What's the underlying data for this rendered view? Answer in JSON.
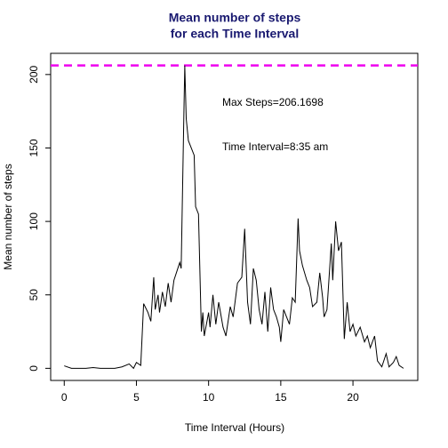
{
  "chart_data": {
    "type": "line",
    "title": [
      "Mean number of steps",
      "for each Time Interval"
    ],
    "xlabel": "Time Interval (Hours)",
    "ylabel": "Mean number of steps",
    "annotations": [
      {
        "text": "Max Steps=206.1698",
        "color": "#ee00ee"
      },
      {
        "text": "Time Interval=8:35 am",
        "color": "#0000ff"
      }
    ],
    "hline": {
      "value": 206.1698,
      "color": "#ee00ee"
    },
    "x": [
      0,
      0.5,
      1,
      1.5,
      2,
      2.5,
      3,
      3.5,
      4,
      4.5,
      4.8,
      5,
      5.3,
      5.5,
      5.8,
      6,
      6.2,
      6.3,
      6.5,
      6.6,
      6.8,
      7,
      7.2,
      7.4,
      7.6,
      7.8,
      8,
      8.1,
      8.3,
      8.35,
      8.45,
      8.6,
      9,
      9.1,
      9.3,
      9.5,
      9.6,
      9.7,
      10,
      10.1,
      10.3,
      10.5,
      10.7,
      11,
      11.2,
      11.5,
      11.7,
      12,
      12.3,
      12.5,
      12.7,
      12.9,
      13.1,
      13.3,
      13.5,
      13.7,
      13.9,
      14.1,
      14.3,
      14.5,
      14.7,
      14.9,
      15,
      15.2,
      15.4,
      15.6,
      15.8,
      16,
      16.2,
      16.3,
      16.5,
      16.8,
      17,
      17.2,
      17.5,
      17.7,
      17.9,
      18,
      18.2,
      18.5,
      18.6,
      18.8,
      19,
      19.2,
      19.4,
      19.6,
      19.8,
      20,
      20.2,
      20.5,
      20.8,
      21,
      21.2,
      21.5,
      21.7,
      22,
      22.3,
      22.5,
      22.8,
      23,
      23.2,
      23.5
    ],
    "series": [
      {
        "name": "steps",
        "color": "#000000",
        "values": [
          1.7,
          0,
          0,
          0,
          0.5,
          0,
          0,
          0,
          1,
          3,
          0,
          4,
          2,
          44,
          38,
          32,
          62,
          40,
          50,
          38,
          52,
          42,
          58,
          45,
          60,
          66,
          72,
          68,
          180,
          206.17,
          170,
          155,
          145,
          110,
          105,
          25,
          38,
          22,
          38,
          28,
          50,
          30,
          45,
          28,
          22,
          42,
          35,
          58,
          62,
          95,
          45,
          30,
          68,
          60,
          40,
          30,
          52,
          25,
          55,
          40,
          35,
          28,
          18,
          40,
          35,
          30,
          48,
          45,
          102,
          80,
          70,
          60,
          55,
          42,
          45,
          65,
          48,
          35,
          40,
          85,
          60,
          100,
          80,
          86,
          20,
          45,
          25,
          30,
          22,
          28,
          18,
          22,
          14,
          22,
          5,
          1,
          10,
          1,
          4,
          8,
          2,
          0
        ]
      }
    ],
    "xlim": [
      -0.94,
      24.49
    ],
    "ylim": [
      -8.25,
      214.42
    ],
    "xticks": [
      0,
      5,
      10,
      15,
      20
    ],
    "yticks": [
      0,
      50,
      100,
      150,
      200
    ]
  }
}
